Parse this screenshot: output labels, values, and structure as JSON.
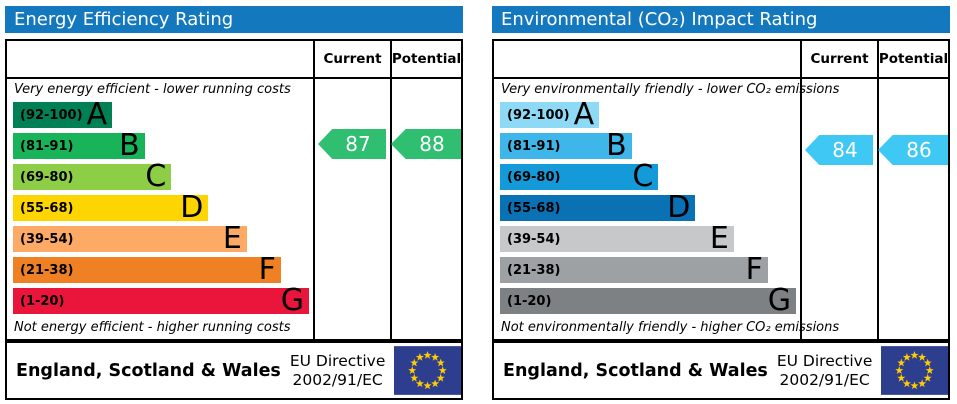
{
  "colors": {
    "title_bar": "#1478be",
    "eu_flag_bg": "#2e3e8f",
    "eu_flag_star": "#ffcc00",
    "energy_arrow": "#30be70",
    "co2_arrow": "#40c8f4"
  },
  "panels": [
    {
      "id": "energy-efficiency",
      "title": "Energy Efficiency Rating",
      "columns": {
        "current": "Current",
        "potential": "Potential"
      },
      "top_note": "Very energy efficient - lower running costs",
      "bottom_note": "Not energy efficient - higher running costs",
      "bands": [
        {
          "letter": "A",
          "range": "(92-100)",
          "color": "#008054",
          "width_pct": 33.5
        },
        {
          "letter": "B",
          "range": "(81-91)",
          "color": "#19b459",
          "width_pct": 44.5
        },
        {
          "letter": "C",
          "range": "(69-80)",
          "color": "#8dce46",
          "width_pct": 53.5
        },
        {
          "letter": "D",
          "range": "(55-68)",
          "color": "#ffd500",
          "width_pct": 66
        },
        {
          "letter": "E",
          "range": "(39-54)",
          "color": "#fcaa65",
          "width_pct": 79
        },
        {
          "letter": "F",
          "range": "(21-38)",
          "color": "#ef8023",
          "width_pct": 90.5
        },
        {
          "letter": "G",
          "range": "(1-20)",
          "color": "#e9153b",
          "width_pct": 100
        }
      ],
      "current": {
        "value": "87",
        "color": "#30be70"
      },
      "potential": {
        "value": "88",
        "color": "#30be70"
      },
      "footer": {
        "region": "England, Scotland & Wales",
        "directive_line1": "EU Directive",
        "directive_line2": "2002/91/EC"
      }
    },
    {
      "id": "environmental-co2-impact",
      "title": "Environmental (CO₂) Impact Rating",
      "columns": {
        "current": "Current",
        "potential": "Potential"
      },
      "top_note": "Very environmentally friendly - lower CO₂ emissions",
      "bottom_note": "Not environmentally friendly - higher CO₂ emissions",
      "bands": [
        {
          "letter": "A",
          "range": "(92-100)",
          "color": "#8ed9f5",
          "width_pct": 33.5
        },
        {
          "letter": "B",
          "range": "(81-91)",
          "color": "#3eb6e9",
          "width_pct": 44.5
        },
        {
          "letter": "C",
          "range": "(69-80)",
          "color": "#149ad8",
          "width_pct": 53.5
        },
        {
          "letter": "D",
          "range": "(55-68)",
          "color": "#0b71b5",
          "width_pct": 66
        },
        {
          "letter": "E",
          "range": "(39-54)",
          "color": "#c6c8ca",
          "width_pct": 79
        },
        {
          "letter": "F",
          "range": "(21-38)",
          "color": "#9ea1a4",
          "width_pct": 90.5
        },
        {
          "letter": "G",
          "range": "(1-20)",
          "color": "#7e8183",
          "width_pct": 100
        }
      ],
      "current": {
        "value": "84",
        "color": "#40c8f4"
      },
      "potential": {
        "value": "86",
        "color": "#40c8f4"
      },
      "footer": {
        "region": "England, Scotland & Wales",
        "directive_line1": "EU Directive",
        "directive_line2": "2002/91/EC"
      }
    }
  ],
  "chart_data": [
    {
      "type": "bar",
      "title": "Energy Efficiency Rating",
      "categories": [
        "A (92-100)",
        "B (81-91)",
        "C (69-80)",
        "D (55-68)",
        "E (39-54)",
        "F (21-38)",
        "G (1-20)"
      ],
      "series": [
        {
          "name": "Current",
          "values": [
            87
          ],
          "band": "B"
        },
        {
          "name": "Potential",
          "values": [
            88
          ],
          "band": "B"
        }
      ],
      "xlim": [
        1,
        100
      ],
      "notes": [
        "Very energy efficient - lower running costs",
        "Not energy efficient - higher running costs"
      ],
      "footer": "England, Scotland & Wales | EU Directive 2002/91/EC",
      "legend_position": "top-right-columns"
    },
    {
      "type": "bar",
      "title": "Environmental (CO₂) Impact Rating",
      "categories": [
        "A (92-100)",
        "B (81-91)",
        "C (69-80)",
        "D (55-68)",
        "E (39-54)",
        "F (21-38)",
        "G (1-20)"
      ],
      "series": [
        {
          "name": "Current",
          "values": [
            84
          ],
          "band": "B"
        },
        {
          "name": "Potential",
          "values": [
            86
          ],
          "band": "B"
        }
      ],
      "xlim": [
        1,
        100
      ],
      "notes": [
        "Very environmentally friendly - lower CO₂ emissions",
        "Not environmentally friendly - higher CO₂ emissions"
      ],
      "footer": "England, Scotland & Wales | EU Directive 2002/91/EC",
      "legend_position": "top-right-columns"
    }
  ]
}
